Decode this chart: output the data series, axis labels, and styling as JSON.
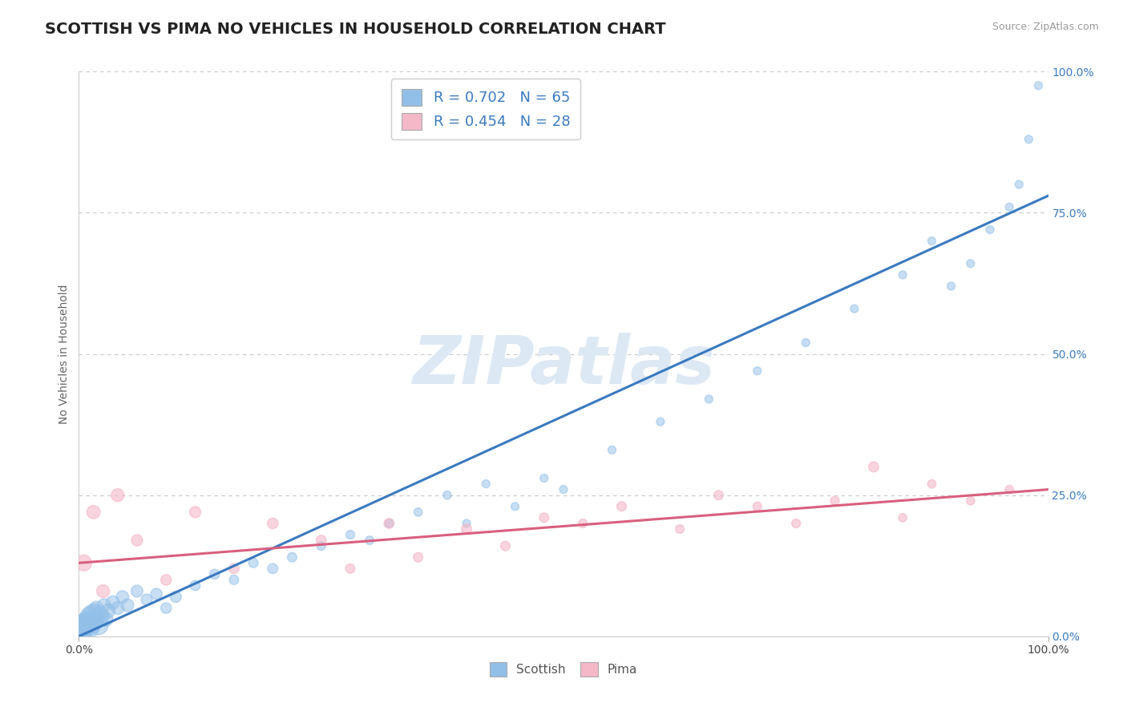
{
  "title": "SCOTTISH VS PIMA NO VEHICLES IN HOUSEHOLD CORRELATION CHART",
  "source": "Source: ZipAtlas.com",
  "ylabel": "No Vehicles in Household",
  "legend_scottish": "R = 0.702   N = 65",
  "legend_pima": "R = 0.454   N = 28",
  "scottish_color": "#92bfe8",
  "pima_color": "#f4b8c8",
  "scottish_line_color": "#3a7abf",
  "pima_line_color": "#d95f7f",
  "background_color": "#ffffff",
  "grid_color": "#c8c8c8",
  "watermark_color": "#dde8f5",
  "scottish_line_x0": 0,
  "scottish_line_y0": 0,
  "scottish_line_x1": 100,
  "scottish_line_y1": 78,
  "pima_line_x0": 0,
  "pima_line_y0": 13,
  "pima_line_x1": 100,
  "pima_line_y1": 26,
  "scottish_x": [
    0.2,
    0.3,
    0.4,
    0.5,
    0.6,
    0.7,
    0.8,
    0.9,
    1.0,
    1.1,
    1.2,
    1.3,
    1.4,
    1.5,
    1.6,
    1.7,
    1.8,
    1.9,
    2.0,
    2.2,
    2.4,
    2.6,
    2.8,
    3.0,
    3.5,
    4.0,
    4.5,
    5.0,
    6.0,
    7.0,
    8.0,
    9.0,
    10.0,
    12.0,
    14.0,
    16.0,
    18.0,
    20.0,
    22.0,
    25.0,
    28.0,
    30.0,
    32.0,
    35.0,
    38.0,
    40.0,
    42.0,
    45.0,
    48.0,
    50.0,
    55.0,
    60.0,
    65.0,
    70.0,
    75.0,
    80.0,
    85.0,
    88.0,
    90.0,
    92.0,
    94.0,
    96.0,
    97.0,
    98.0,
    99.0
  ],
  "scottish_y": [
    1.0,
    1.5,
    2.0,
    1.0,
    2.5,
    1.5,
    3.0,
    2.0,
    1.5,
    3.5,
    2.5,
    4.0,
    2.0,
    3.0,
    4.5,
    2.5,
    5.0,
    3.0,
    2.0,
    4.0,
    3.5,
    5.5,
    3.0,
    4.5,
    6.0,
    5.0,
    7.0,
    5.5,
    8.0,
    6.5,
    7.5,
    5.0,
    7.0,
    9.0,
    11.0,
    10.0,
    13.0,
    12.0,
    14.0,
    16.0,
    18.0,
    17.0,
    20.0,
    22.0,
    25.0,
    20.0,
    27.0,
    23.0,
    28.0,
    26.0,
    33.0,
    38.0,
    42.0,
    47.0,
    52.0,
    58.0,
    64.0,
    70.0,
    62.0,
    66.0,
    72.0,
    76.0,
    80.0,
    88.0,
    97.5
  ],
  "scottish_sizes": [
    350,
    320,
    300,
    280,
    260,
    240,
    220,
    200,
    330,
    280,
    260,
    240,
    220,
    200,
    180,
    160,
    150,
    140,
    300,
    180,
    160,
    140,
    150,
    160,
    140,
    130,
    120,
    130,
    110,
    100,
    100,
    90,
    100,
    80,
    80,
    70,
    70,
    80,
    70,
    60,
    60,
    60,
    55,
    55,
    55,
    50,
    50,
    50,
    50,
    50,
    50,
    50,
    50,
    50,
    50,
    50,
    50,
    50,
    50,
    50,
    50,
    50,
    50,
    50,
    50
  ],
  "pima_x": [
    0.5,
    1.5,
    2.5,
    4.0,
    6.0,
    9.0,
    12.0,
    16.0,
    20.0,
    25.0,
    28.0,
    32.0,
    35.0,
    40.0,
    44.0,
    48.0,
    52.0,
    56.0,
    62.0,
    66.0,
    70.0,
    74.0,
    78.0,
    82.0,
    85.0,
    88.0,
    92.0,
    96.0
  ],
  "pima_y": [
    13.0,
    22.0,
    8.0,
    25.0,
    17.0,
    10.0,
    22.0,
    12.0,
    20.0,
    17.0,
    12.0,
    20.0,
    14.0,
    19.0,
    16.0,
    21.0,
    20.0,
    23.0,
    19.0,
    25.0,
    23.0,
    20.0,
    24.0,
    30.0,
    21.0,
    27.0,
    24.0,
    26.0
  ],
  "pima_sizes": [
    200,
    140,
    130,
    130,
    100,
    90,
    100,
    80,
    90,
    80,
    70,
    80,
    70,
    80,
    70,
    70,
    60,
    70,
    60,
    70,
    60,
    60,
    60,
    80,
    55,
    55,
    55,
    55
  ],
  "xlim": [
    0,
    100
  ],
  "ylim": [
    0,
    100
  ],
  "ytick_values": [
    0.0,
    25.0,
    50.0,
    75.0,
    100.0
  ],
  "title_fontsize": 14,
  "watermark": "ZIPatlas"
}
